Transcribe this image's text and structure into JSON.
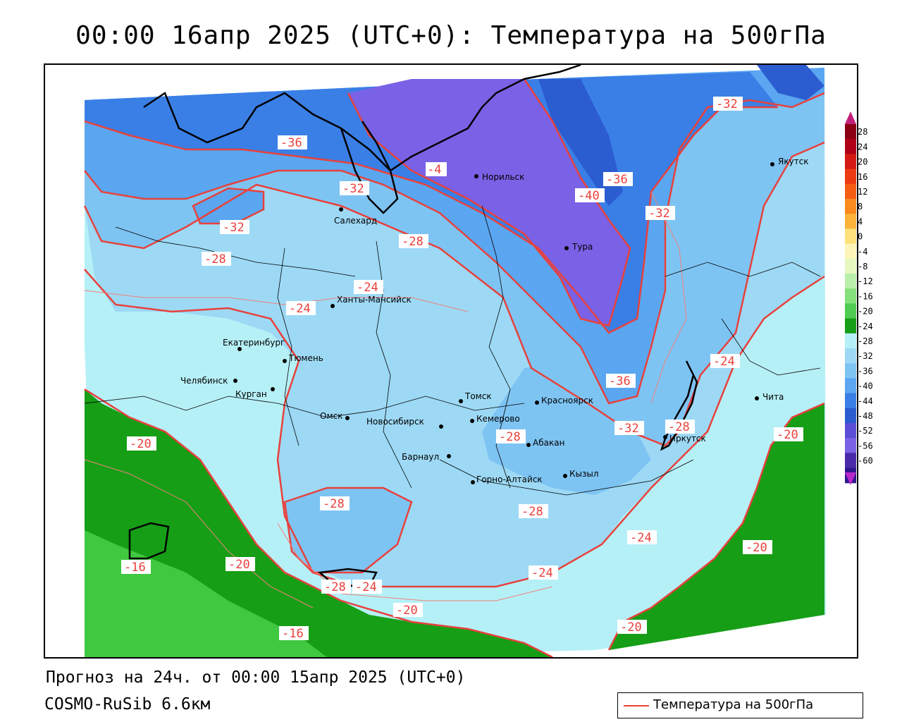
{
  "title": "00:00 16апр 2025 (UTC+0): Температура на 500гПа",
  "forecast_line": "Прогноз на 24ч. от 00:00 15апр 2025 (UTC+0)",
  "model_line": "COSMO-RuSib 6.6км",
  "legend": {
    "label": "Температура на 500гПа",
    "color": "#e8413c"
  },
  "colorbar": {
    "ticks": [
      "28",
      "24",
      "20",
      "16",
      "12",
      "8",
      "4",
      "0",
      "-4",
      "-8",
      "-12",
      "-16",
      "-20",
      "-24",
      "-28",
      "-32",
      "-36",
      "-40",
      "-44",
      "-48",
      "-52",
      "-56",
      "-60"
    ],
    "colors": [
      "#8b0015",
      "#b00018",
      "#d41a12",
      "#ee3a12",
      "#f65e14",
      "#f98a1e",
      "#fbb33a",
      "#fde07a",
      "#fdf5b8",
      "#e6f8bf",
      "#b9efa8",
      "#85e07c",
      "#4fcb52",
      "#169e16",
      "#b6f0f7",
      "#9dd9f5",
      "#7ec4f3",
      "#5aa6f0",
      "#3a7fe6",
      "#2b5cd0",
      "#5a4fd6",
      "#7a62e6",
      "#4a2aa8",
      "#301590"
    ]
  },
  "cities": [
    {
      "name": "Норильск",
      "icon": "city-dot-icon"
    },
    {
      "name": "Якутск",
      "icon": "city-dot-icon"
    },
    {
      "name": "Салехард",
      "icon": "city-dot-icon"
    },
    {
      "name": "Тура",
      "icon": "city-dot-icon"
    },
    {
      "name": "Ханты-Мансийск",
      "icon": "city-dot-icon"
    },
    {
      "name": "Екатеринбург",
      "icon": "city-dot-icon"
    },
    {
      "name": "Тюмень",
      "icon": "city-dot-icon"
    },
    {
      "name": "Челябинск",
      "icon": "city-dot-icon"
    },
    {
      "name": "Курган",
      "icon": "city-dot-icon"
    },
    {
      "name": "Омск",
      "icon": "city-dot-icon"
    },
    {
      "name": "Новосибирск",
      "icon": "city-dot-icon"
    },
    {
      "name": "Томск",
      "icon": "city-dot-icon"
    },
    {
      "name": "Кемерово",
      "icon": "city-dot-icon"
    },
    {
      "name": "Красноярск",
      "icon": "city-dot-icon"
    },
    {
      "name": "Абакан",
      "icon": "city-dot-icon"
    },
    {
      "name": "Барнаул",
      "icon": "city-dot-icon"
    },
    {
      "name": "Горно-Алтайск",
      "icon": "city-dot-icon"
    },
    {
      "name": "Кызыл",
      "icon": "city-dot-icon"
    },
    {
      "name": "Иркутск",
      "icon": "city-dot-icon"
    },
    {
      "name": "Чита",
      "icon": "city-dot-icon"
    }
  ],
  "isotherm_labels": [
    "-32",
    "-36",
    "-4",
    "-32",
    "-32",
    "-28",
    "-28",
    "-24",
    "-24",
    "-36",
    "-40",
    "-32",
    "-24",
    "-36",
    "-28",
    "-32",
    "-28",
    "-20",
    "-28",
    "-28",
    "-24",
    "-20",
    "-16",
    "-20",
    "-28",
    "-24",
    "-20",
    "-24",
    "-16",
    "-20",
    "-20"
  ]
}
